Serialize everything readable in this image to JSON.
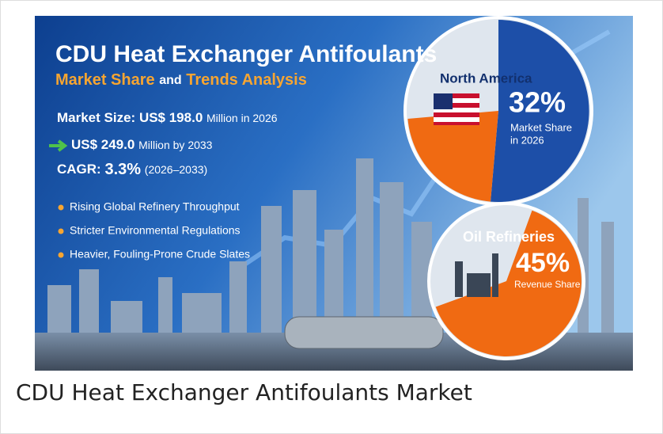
{
  "infographic": {
    "title": "CDU Heat Exchanger Antifoulants",
    "subtitle": {
      "part1": "Market Share",
      "part2": "and",
      "part3": "Trends Analysis"
    },
    "market_size": {
      "label": "Market Size:",
      "value": "US$ 198.0",
      "suffix": "Million in 2026"
    },
    "forecast": {
      "value": "US$ 249.0",
      "suffix": "Million by 2033"
    },
    "cagr": {
      "label": "CAGR:",
      "value": "3.3%",
      "period": "(2026–2033)"
    },
    "bullets": [
      "Rising Global Refinery Throughput",
      "Stricter Environmental Regulations",
      "Heavier, Fouling-Prone Crude Slates"
    ],
    "region_share": {
      "region": "North America",
      "percent": "32%",
      "label_lines": [
        "Market Share",
        "in 2026"
      ]
    },
    "segment_share": {
      "segment": "Oil Refineries",
      "percent": "45%",
      "label": "Revenue Share"
    }
  },
  "caption": "CDU Heat Exchanger Antifoulants Market"
}
